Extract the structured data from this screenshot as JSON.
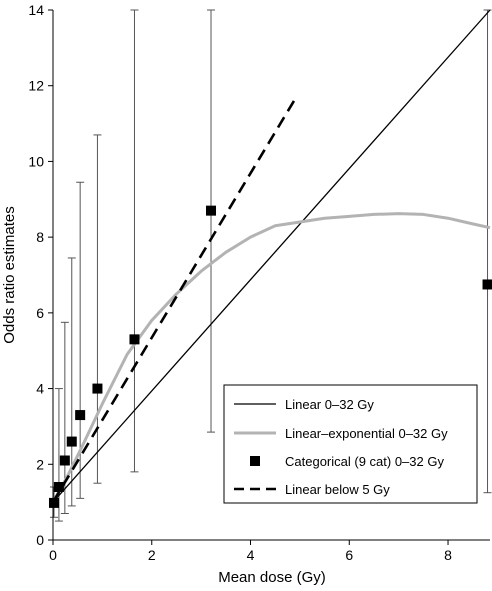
{
  "chart_data": {
    "type": "line",
    "title": "",
    "xlabel": "Mean dose (Gy)",
    "ylabel": "Odds ratio estimates",
    "xlim": [
      0,
      8.85
    ],
    "ylim": [
      0,
      14
    ],
    "x_ticks": [
      0,
      2,
      4,
      6,
      8
    ],
    "y_ticks": [
      0,
      2,
      4,
      6,
      8,
      10,
      12,
      14
    ],
    "grid": false,
    "legend_position": "lower-right",
    "series": [
      {
        "name": "Linear 0–32 Gy",
        "kind": "line",
        "style": "solid",
        "color": "#000000",
        "points": [
          [
            0,
            1.0
          ],
          [
            8.85,
            14.0
          ]
        ]
      },
      {
        "name": "Linear–exponential 0–32 Gy",
        "kind": "line",
        "style": "solid",
        "color": "#b3b3b3",
        "points": [
          [
            0,
            1.0
          ],
          [
            0.3,
            1.7
          ],
          [
            0.6,
            2.5
          ],
          [
            1.0,
            3.6
          ],
          [
            1.5,
            4.9
          ],
          [
            2.0,
            5.8
          ],
          [
            2.5,
            6.5
          ],
          [
            3.0,
            7.1
          ],
          [
            3.5,
            7.6
          ],
          [
            4.0,
            8.0
          ],
          [
            4.5,
            8.3
          ],
          [
            5.0,
            8.4
          ],
          [
            5.5,
            8.5
          ],
          [
            6.0,
            8.55
          ],
          [
            6.5,
            8.6
          ],
          [
            7.0,
            8.62
          ],
          [
            7.5,
            8.6
          ],
          [
            8.0,
            8.5
          ],
          [
            8.5,
            8.35
          ],
          [
            8.85,
            8.25
          ]
        ]
      },
      {
        "name": "Categorical (9 cat) 0–32 Gy",
        "kind": "scatter",
        "marker": "square",
        "color": "#000000",
        "points": [
          {
            "x": 0.02,
            "y": 0.98,
            "low": 0.6,
            "high": 1.4
          },
          {
            "x": 0.12,
            "y": 1.4,
            "low": 0.5,
            "high": 4.0
          },
          {
            "x": 0.24,
            "y": 2.1,
            "low": 0.7,
            "high": 5.75
          },
          {
            "x": 0.38,
            "y": 2.6,
            "low": 0.9,
            "high": 7.45
          },
          {
            "x": 0.55,
            "y": 3.3,
            "low": 1.1,
            "high": 9.45
          },
          {
            "x": 0.9,
            "y": 4.0,
            "low": 1.5,
            "high": 10.7
          },
          {
            "x": 1.65,
            "y": 5.3,
            "low": 1.8,
            "high": 14.0
          },
          {
            "x": 3.2,
            "y": 8.7,
            "low": 2.85,
            "high": 14.0
          },
          {
            "x": 8.8,
            "y": 6.75,
            "low": 1.25,
            "high": 14.0
          }
        ]
      },
      {
        "name": "Linear below 5 Gy",
        "kind": "line",
        "style": "dashed",
        "color": "#000000",
        "points": [
          [
            0,
            1.0
          ],
          [
            4.95,
            11.75
          ]
        ]
      }
    ]
  }
}
